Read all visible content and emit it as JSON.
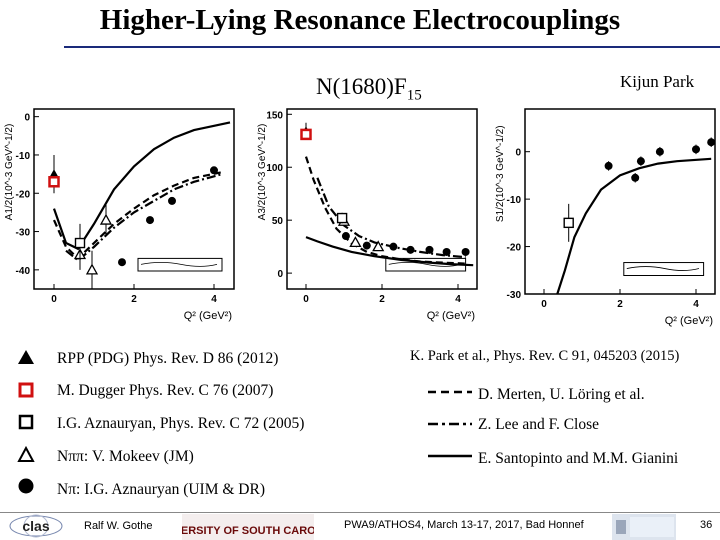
{
  "slide": {
    "title": "Higher-Lying Resonance Electrocouplings",
    "subtitle_main": "N(1680)F",
    "subtitle_sub": "15",
    "author": "Kijun Park"
  },
  "legend_left": [
    {
      "symbol": "filled-triangle",
      "text": "RPP (PDG) Phys. Rev. D 86 (2012)"
    },
    {
      "symbol": "red-open-square",
      "text": "M. Dugger Phys. Rev. C 76 (2007)"
    },
    {
      "symbol": "open-square",
      "text": "I.G. Aznauryan, Phys. Rev. C 72 (2005)"
    },
    {
      "symbol": "open-triangle",
      "text": "Nππ: V. Mokeev (JM)"
    },
    {
      "symbol": "filled-circle",
      "text": "Nπ: I.G. Aznauryan (UIM & DR)"
    }
  ],
  "legend_right_ref": "K. Park et al., Phys. Rev. C 91, 045203 (2015)",
  "legend_right": [
    {
      "style": "dashed",
      "text": "D. Merten, U. Löring et al."
    },
    {
      "style": "dashdot",
      "text": "Z. Lee and F. Close"
    },
    {
      "style": "solid",
      "text": "E. Santopinto and M.M. Gianini"
    }
  ],
  "footer": {
    "presenter": "Ralf  W. Gothe",
    "conference": "PWA9/ATHOS4, March 13-17, 2017, Bad Honnef",
    "page": "36"
  },
  "logos": {
    "clas": "clas",
    "university": "UNIVERSITY OF SOUTH CAROLINA"
  },
  "colors": {
    "accent_red": "#d01010",
    "rule_blue": "#1a2a7a"
  },
  "chart_data": [
    {
      "type": "scatter",
      "name": "A1/2",
      "ylabel": "A1/2(10^-3 GeV^-1/2)",
      "xlabel": "Q² (GeV²)",
      "xlim": [
        -0.5,
        4.5
      ],
      "ylim": [
        -45,
        2
      ],
      "xticks": [
        0,
        2,
        4
      ],
      "yticks": [
        0,
        -10,
        -20,
        -30,
        -40
      ],
      "points": {
        "pdg": [
          {
            "x": 0.0,
            "y": -15,
            "e": 5
          }
        ],
        "dugger": [
          {
            "x": 0.0,
            "y": -17,
            "e": 1
          }
        ],
        "azn2005": [
          {
            "x": 0.65,
            "y": -33,
            "e": 5
          }
        ],
        "nppi": [
          {
            "x": 0.65,
            "y": -36,
            "e": 4
          },
          {
            "x": 0.95,
            "y": -40,
            "e": 5
          },
          {
            "x": 1.3,
            "y": -27,
            "e": 4
          }
        ],
        "npi": [
          {
            "x": 1.7,
            "y": -38,
            "e": 1
          },
          {
            "x": 2.4,
            "y": -27,
            "e": 1
          },
          {
            "x": 2.95,
            "y": -22,
            "e": 1
          },
          {
            "x": 4.0,
            "y": -14,
            "e": 1
          }
        ]
      },
      "curves": {
        "dashed": [
          [
            0,
            -27
          ],
          [
            0.3,
            -34
          ],
          [
            0.6,
            -37
          ],
          [
            1.0,
            -33
          ],
          [
            1.5,
            -28
          ],
          [
            2.0,
            -24
          ],
          [
            2.5,
            -20.5
          ],
          [
            3.0,
            -18
          ],
          [
            3.5,
            -16
          ],
          [
            4.2,
            -14.5
          ]
        ],
        "dashdot": [
          [
            0.3,
            -35
          ],
          [
            0.6,
            -37.5
          ],
          [
            1.0,
            -34
          ],
          [
            1.5,
            -29
          ],
          [
            2.0,
            -25
          ],
          [
            2.5,
            -22
          ],
          [
            3.0,
            -19
          ],
          [
            3.5,
            -17
          ],
          [
            4.2,
            -15
          ]
        ],
        "solid": [
          [
            0.0,
            -24
          ],
          [
            0.3,
            -33
          ],
          [
            0.6,
            -34.5
          ],
          [
            1.0,
            -28
          ],
          [
            1.5,
            -19
          ],
          [
            2.0,
            -13
          ],
          [
            2.5,
            -8.5
          ],
          [
            3.0,
            -5.5
          ],
          [
            3.5,
            -3.5
          ],
          [
            4.4,
            -1.5
          ]
        ]
      }
    },
    {
      "type": "scatter",
      "name": "A3/2",
      "ylabel": "A3/2(10^-3 GeV^-1/2)",
      "xlabel": "Q² (GeV²)",
      "xlim": [
        -0.5,
        4.5
      ],
      "ylim": [
        -15,
        155
      ],
      "xticks": [
        0,
        2,
        4
      ],
      "yticks": [
        0,
        50,
        100,
        150
      ],
      "points": {
        "pdg": [
          {
            "x": 0.0,
            "y": 134,
            "e": 8
          }
        ],
        "dugger": [
          {
            "x": 0.0,
            "y": 131,
            "e": 1
          }
        ],
        "azn2005": [
          {
            "x": 0.95,
            "y": 52,
            "e": 5
          }
        ],
        "nppi": [
          {
            "x": 1.0,
            "y": 49,
            "e": 4
          },
          {
            "x": 1.3,
            "y": 29,
            "e": 4
          },
          {
            "x": 1.9,
            "y": 25,
            "e": 4
          }
        ],
        "npi": [
          {
            "x": 1.05,
            "y": 35,
            "e": 1
          },
          {
            "x": 1.6,
            "y": 26,
            "e": 1
          },
          {
            "x": 2.3,
            "y": 25,
            "e": 1
          },
          {
            "x": 2.75,
            "y": 22,
            "e": 1
          },
          {
            "x": 3.25,
            "y": 22,
            "e": 1
          },
          {
            "x": 3.7,
            "y": 20,
            "e": 1
          },
          {
            "x": 4.2,
            "y": 20,
            "e": 1
          }
        ]
      },
      "curves": {
        "dashed": [
          [
            0,
            110
          ],
          [
            0.2,
            88
          ],
          [
            0.5,
            62
          ],
          [
            0.8,
            42
          ],
          [
            1.2,
            28
          ],
          [
            1.6,
            20
          ],
          [
            2.0,
            16
          ],
          [
            2.5,
            13
          ],
          [
            3.0,
            11
          ],
          [
            3.5,
            10
          ],
          [
            4.2,
            9
          ]
        ],
        "dashdot": [
          [
            0.3,
            90
          ],
          [
            0.6,
            63
          ],
          [
            1.0,
            45
          ],
          [
            1.4,
            35
          ],
          [
            1.8,
            29
          ],
          [
            2.4,
            24
          ],
          [
            3.0,
            20
          ],
          [
            3.6,
            17
          ],
          [
            4.2,
            15
          ]
        ],
        "solid": [
          [
            0.0,
            34
          ],
          [
            0.3,
            30
          ],
          [
            0.7,
            25
          ],
          [
            1.2,
            20
          ],
          [
            1.8,
            16
          ],
          [
            2.5,
            12.5
          ],
          [
            3.2,
            10
          ],
          [
            3.8,
            8.5
          ],
          [
            4.4,
            7.5
          ]
        ]
      }
    },
    {
      "type": "scatter",
      "name": "S1/2",
      "ylabel": "S1/2(10^-3 GeV^-1/2)",
      "xlabel": "Q² (GeV²)",
      "xlim": [
        -0.5,
        4.5
      ],
      "ylim": [
        -30,
        9
      ],
      "xticks": [
        0,
        2,
        4
      ],
      "yticks": [
        0,
        -10,
        -20,
        -30
      ],
      "points": {
        "azn2005": [
          {
            "x": 0.65,
            "y": -15,
            "e": 4
          }
        ],
        "npi": [
          {
            "x": 1.7,
            "y": -3,
            "e": 1
          },
          {
            "x": 2.4,
            "y": -5.5,
            "e": 1
          },
          {
            "x": 2.55,
            "y": -2,
            "e": 1
          },
          {
            "x": 3.05,
            "y": 0,
            "e": 1
          },
          {
            "x": 4.0,
            "y": 0.5,
            "e": 1
          },
          {
            "x": 4.4,
            "y": 2,
            "e": 1
          }
        ]
      },
      "curves": {
        "solid": [
          [
            0.35,
            -30
          ],
          [
            0.55,
            -25
          ],
          [
            0.8,
            -18
          ],
          [
            1.1,
            -13
          ],
          [
            1.5,
            -8
          ],
          [
            2.0,
            -5
          ],
          [
            2.5,
            -3.5
          ],
          [
            3.0,
            -2.5
          ],
          [
            3.5,
            -2
          ],
          [
            4.4,
            -1.5
          ]
        ]
      }
    }
  ]
}
